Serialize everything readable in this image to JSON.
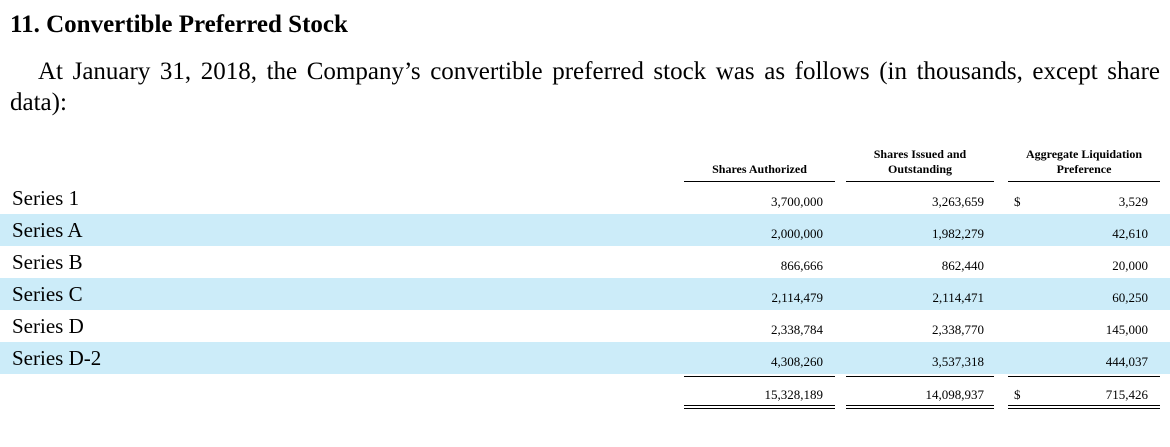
{
  "heading": "11. Convertible Preferred Stock",
  "intro": "At January 31, 2018, the Company’s convertible preferred stock was as follows (in thousands, except share data):",
  "columns": {
    "authorized": "Shares Authorized",
    "issued_line1": "Shares Issued and",
    "issued_line2": "Outstanding",
    "liquidation_line1": "Aggregate Liquidation",
    "liquidation_line2": "Preference"
  },
  "currency_symbol": "$",
  "rows": [
    {
      "label": "Series 1",
      "authorized": "3,700,000",
      "issued": "3,263,659",
      "dollar": "$",
      "liquidation": "3,529"
    },
    {
      "label": "Series A",
      "authorized": "2,000,000",
      "issued": "1,982,279",
      "dollar": "",
      "liquidation": "42,610"
    },
    {
      "label": "Series B",
      "authorized": "866,666",
      "issued": "862,440",
      "dollar": "",
      "liquidation": "20,000"
    },
    {
      "label": "Series C",
      "authorized": "2,114,479",
      "issued": "2,114,471",
      "dollar": "",
      "liquidation": "60,250"
    },
    {
      "label": "Series D",
      "authorized": "2,338,784",
      "issued": "2,338,770",
      "dollar": "",
      "liquidation": "145,000"
    },
    {
      "label": "Series D-2",
      "authorized": "4,308,260",
      "issued": "3,537,318",
      "dollar": "",
      "liquidation": "444,037"
    }
  ],
  "totals": {
    "authorized": "15,328,189",
    "issued": "14,098,937",
    "dollar": "$",
    "liquidation": "715,426"
  }
}
